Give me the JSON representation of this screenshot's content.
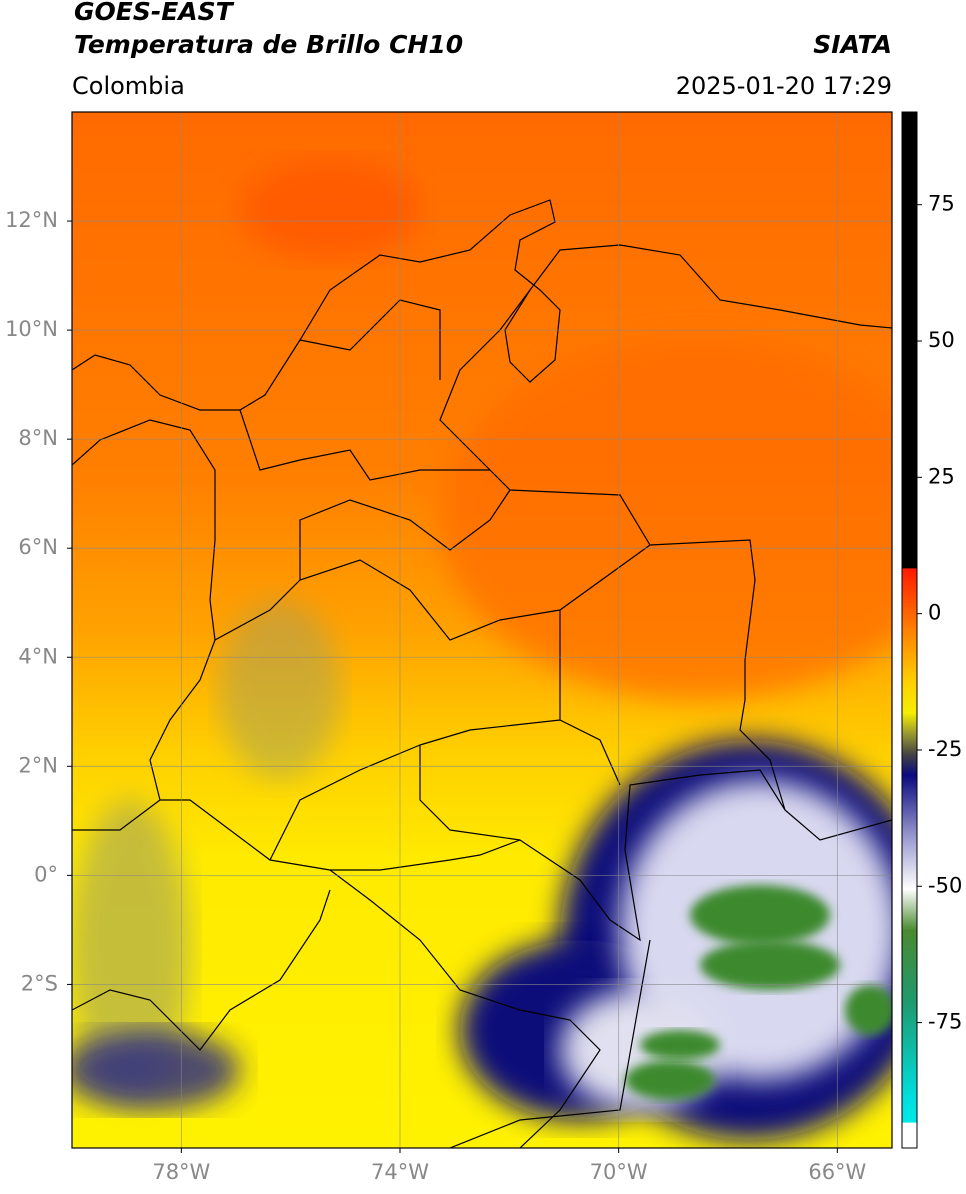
{
  "header": {
    "title": "GOES-EAST",
    "subtitle": "Temperatura de Brillo CH10",
    "source": "SIATA",
    "region": "Colombia",
    "datetime": "2025-01-20 17:29"
  },
  "map": {
    "xlim": [
      -80,
      -65
    ],
    "ylim": [
      -5,
      14
    ],
    "xticks": [
      {
        "value": -78,
        "label": "78°W"
      },
      {
        "value": -74,
        "label": "74°W"
      },
      {
        "value": -70,
        "label": "70°W"
      },
      {
        "value": -66,
        "label": "66°W"
      }
    ],
    "yticks": [
      {
        "value": 12,
        "label": "12°N"
      },
      {
        "value": 10,
        "label": "10°N"
      },
      {
        "value": 8,
        "label": "8°N"
      },
      {
        "value": 6,
        "label": "6°N"
      },
      {
        "value": 4,
        "label": "4°N"
      },
      {
        "value": 2,
        "label": "2°N"
      },
      {
        "value": 0,
        "label": "0°"
      },
      {
        "value": -2,
        "label": "2°S"
      }
    ],
    "grid": true
  },
  "colorbar": {
    "ylim": [
      -98,
      92
    ],
    "yticks": [
      75,
      50,
      25,
      0,
      -25,
      -50,
      -75
    ]
  }
}
